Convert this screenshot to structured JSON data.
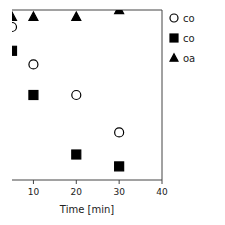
{
  "chart_data": {
    "type": "scatter",
    "xlabel": "Time [min]",
    "x": [
      5,
      10,
      20,
      30
    ],
    "series": [
      {
        "name": "co",
        "color": "#000000",
        "marker": "open-circle",
        "values": [
          0.9,
          0.68,
          0.5,
          0.28
        ]
      },
      {
        "name": "co",
        "color": "#000000",
        "marker": "square",
        "values": [
          0.76,
          0.5,
          0.15,
          0.08
        ]
      },
      {
        "name": "oa",
        "color": "#000000",
        "marker": "triangle",
        "values": [
          0.96,
          0.96,
          0.96,
          1.0
        ]
      }
    ],
    "xlim": [
      5,
      40
    ],
    "ylim": [
      0,
      1.0
    ],
    "xticks": [
      10,
      20,
      30,
      40
    ],
    "tick_labels": "x",
    "legend": "right"
  }
}
